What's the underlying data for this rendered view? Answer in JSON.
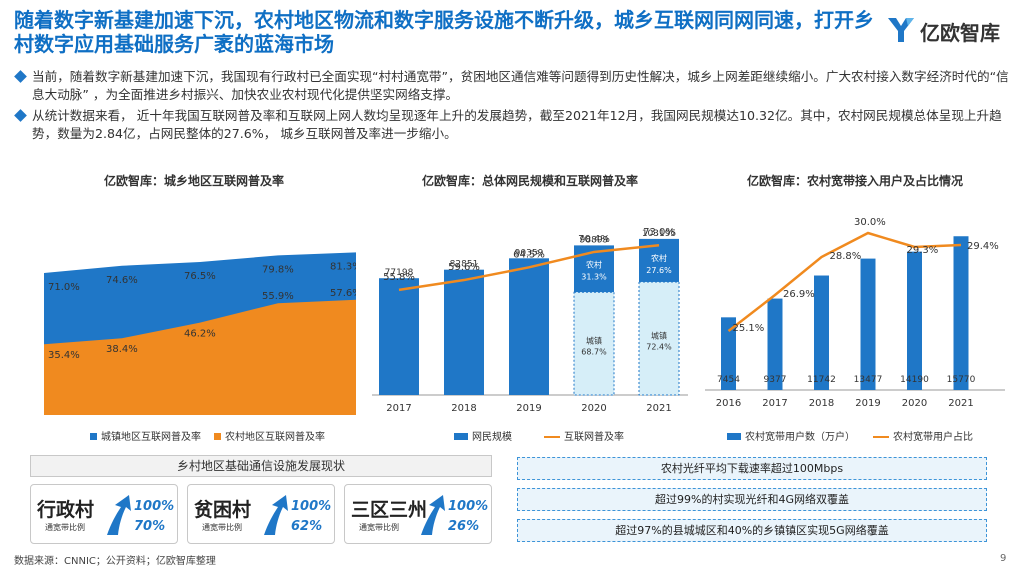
{
  "header": {
    "title": "随着数字新基建加速下沉，农村地区物流和数字服务设施不断升级，城乡互联网同网同速，打开乡村数字应用基础服务广袤的蓝海市场",
    "brand": "亿欧智库"
  },
  "bullets": [
    "当前，随着数字新基建加速下沉，我国现有行政村已全面实现“村村通宽带”，贫困地区通信难等问题得到历史性解决，城乡上网差距继续缩小。广大农村接入数字经济时代的“信息大动脉” ，为全面推进乡村振兴、加快农业农村现代化提供坚实网络支撑。",
    "从统计数据来看， 近十年我国互联网普及率和互联网上网人数均呈现逐年上升的发展趋势，截至2021年12月，我国网民规模达10.32亿。其中，农村网民规模总体呈现上升趋势，数量为2.84亿，占网民整体的27.6%， 城乡互联网普及率进一步缩小。"
  ],
  "chart_titles": [
    "亿欧智库：城乡地区互联网普及率",
    "亿欧智库：总体网民规模和互联网普及率",
    "亿欧智库：农村宽带接入用户及占比情况"
  ],
  "chart_data": [
    {
      "type": "area",
      "title": "亿欧智库：城乡地区互联网普及率",
      "series": [
        {
          "name": "城镇地区互联网普及率",
          "values": [
            71.0,
            74.6,
            76.5,
            79.8,
            81.3
          ],
          "labels": [
            "71.0%",
            "74.6%",
            "76.5%",
            "79.8%",
            "81.3%"
          ],
          "color": "#1f77c7"
        },
        {
          "name": "农村地区互联网普及率",
          "values": [
            35.4,
            38.4,
            46.2,
            55.9,
            57.6
          ],
          "labels": [
            "35.4%",
            "38.4%",
            "46.2%",
            "55.9%",
            "57.6%"
          ],
          "color": "#f08a1f"
        }
      ],
      "ylim": [
        0,
        100
      ]
    },
    {
      "type": "bar",
      "title": "亿欧智库：总体网民规模和互联网普及率",
      "categories": [
        "2017",
        "2018",
        "2019",
        "2020",
        "2021"
      ],
      "series": [
        {
          "name": "网民规模",
          "values": [
            77198,
            82851,
            90359,
            98899,
            103195
          ],
          "labels": [
            "77198",
            "82851",
            "90359",
            "98899",
            "103195"
          ],
          "color": "#1f77c7"
        },
        {
          "name": "互联网普及率",
          "type": "line",
          "values": [
            55.8,
            59.6,
            64.5,
            70.4,
            73.0
          ],
          "labels": [
            "55.8%",
            "59.6%",
            "64.5%",
            "70.4%",
            "73.0%"
          ],
          "color": "#f08a1f"
        }
      ],
      "stack_2020": {
        "rural_label": "农村",
        "rural_pct": "31.3%",
        "urban_label": "城镇",
        "urban_pct": "68.7%",
        "rural": 0.313
      },
      "stack_2021": {
        "rural_label": "农村",
        "rural_pct": "27.6%",
        "urban_label": "城镇",
        "urban_pct": "72.4%",
        "rural": 0.276
      }
    },
    {
      "type": "bar",
      "title": "亿欧智库：农村宽带接入用户及占比情况",
      "categories": [
        "2016",
        "2017",
        "2018",
        "2019",
        "2020",
        "2021"
      ],
      "series": [
        {
          "name": "农村宽带用户数（万户）",
          "values": [
            7454,
            9377,
            11742,
            13477,
            14190,
            15770
          ],
          "labels": [
            "7454",
            "9377",
            "11742",
            "13477",
            "14190",
            "15770"
          ],
          "color": "#1f77c7"
        },
        {
          "name": "农村宽带用户占比",
          "type": "line",
          "values": [
            25.1,
            26.9,
            28.8,
            30.0,
            29.3,
            29.4
          ],
          "labels": [
            "25.1%",
            "26.9%",
            "28.8%",
            "30.0%",
            "29.3%",
            "29.4%"
          ],
          "color": "#f08a1f"
        }
      ]
    }
  ],
  "rural_section": {
    "title": "乡村地区基础通信设施发展现状",
    "cards": [
      {
        "name": "行政村",
        "sub": "通宽带比例",
        "v1": "100%",
        "v2": "70%"
      },
      {
        "name": "贫困村",
        "sub": "通宽带比例",
        "v1": "100%",
        "v2": "62%"
      },
      {
        "name": "三区三州",
        "sub": "通宽带比例",
        "v1": "100%",
        "v2": "26%"
      }
    ],
    "facts": [
      "农村光纤平均下载速率超过100Mbps",
      "超过99%的村实现光纤和4G网络双覆盖",
      "超过97%的县城城区和40%的乡镇镇区实现5G网络覆盖"
    ]
  },
  "footer": {
    "source": "数据来源：CNNIC；公开资料；亿欧智库整理",
    "page": "9"
  }
}
